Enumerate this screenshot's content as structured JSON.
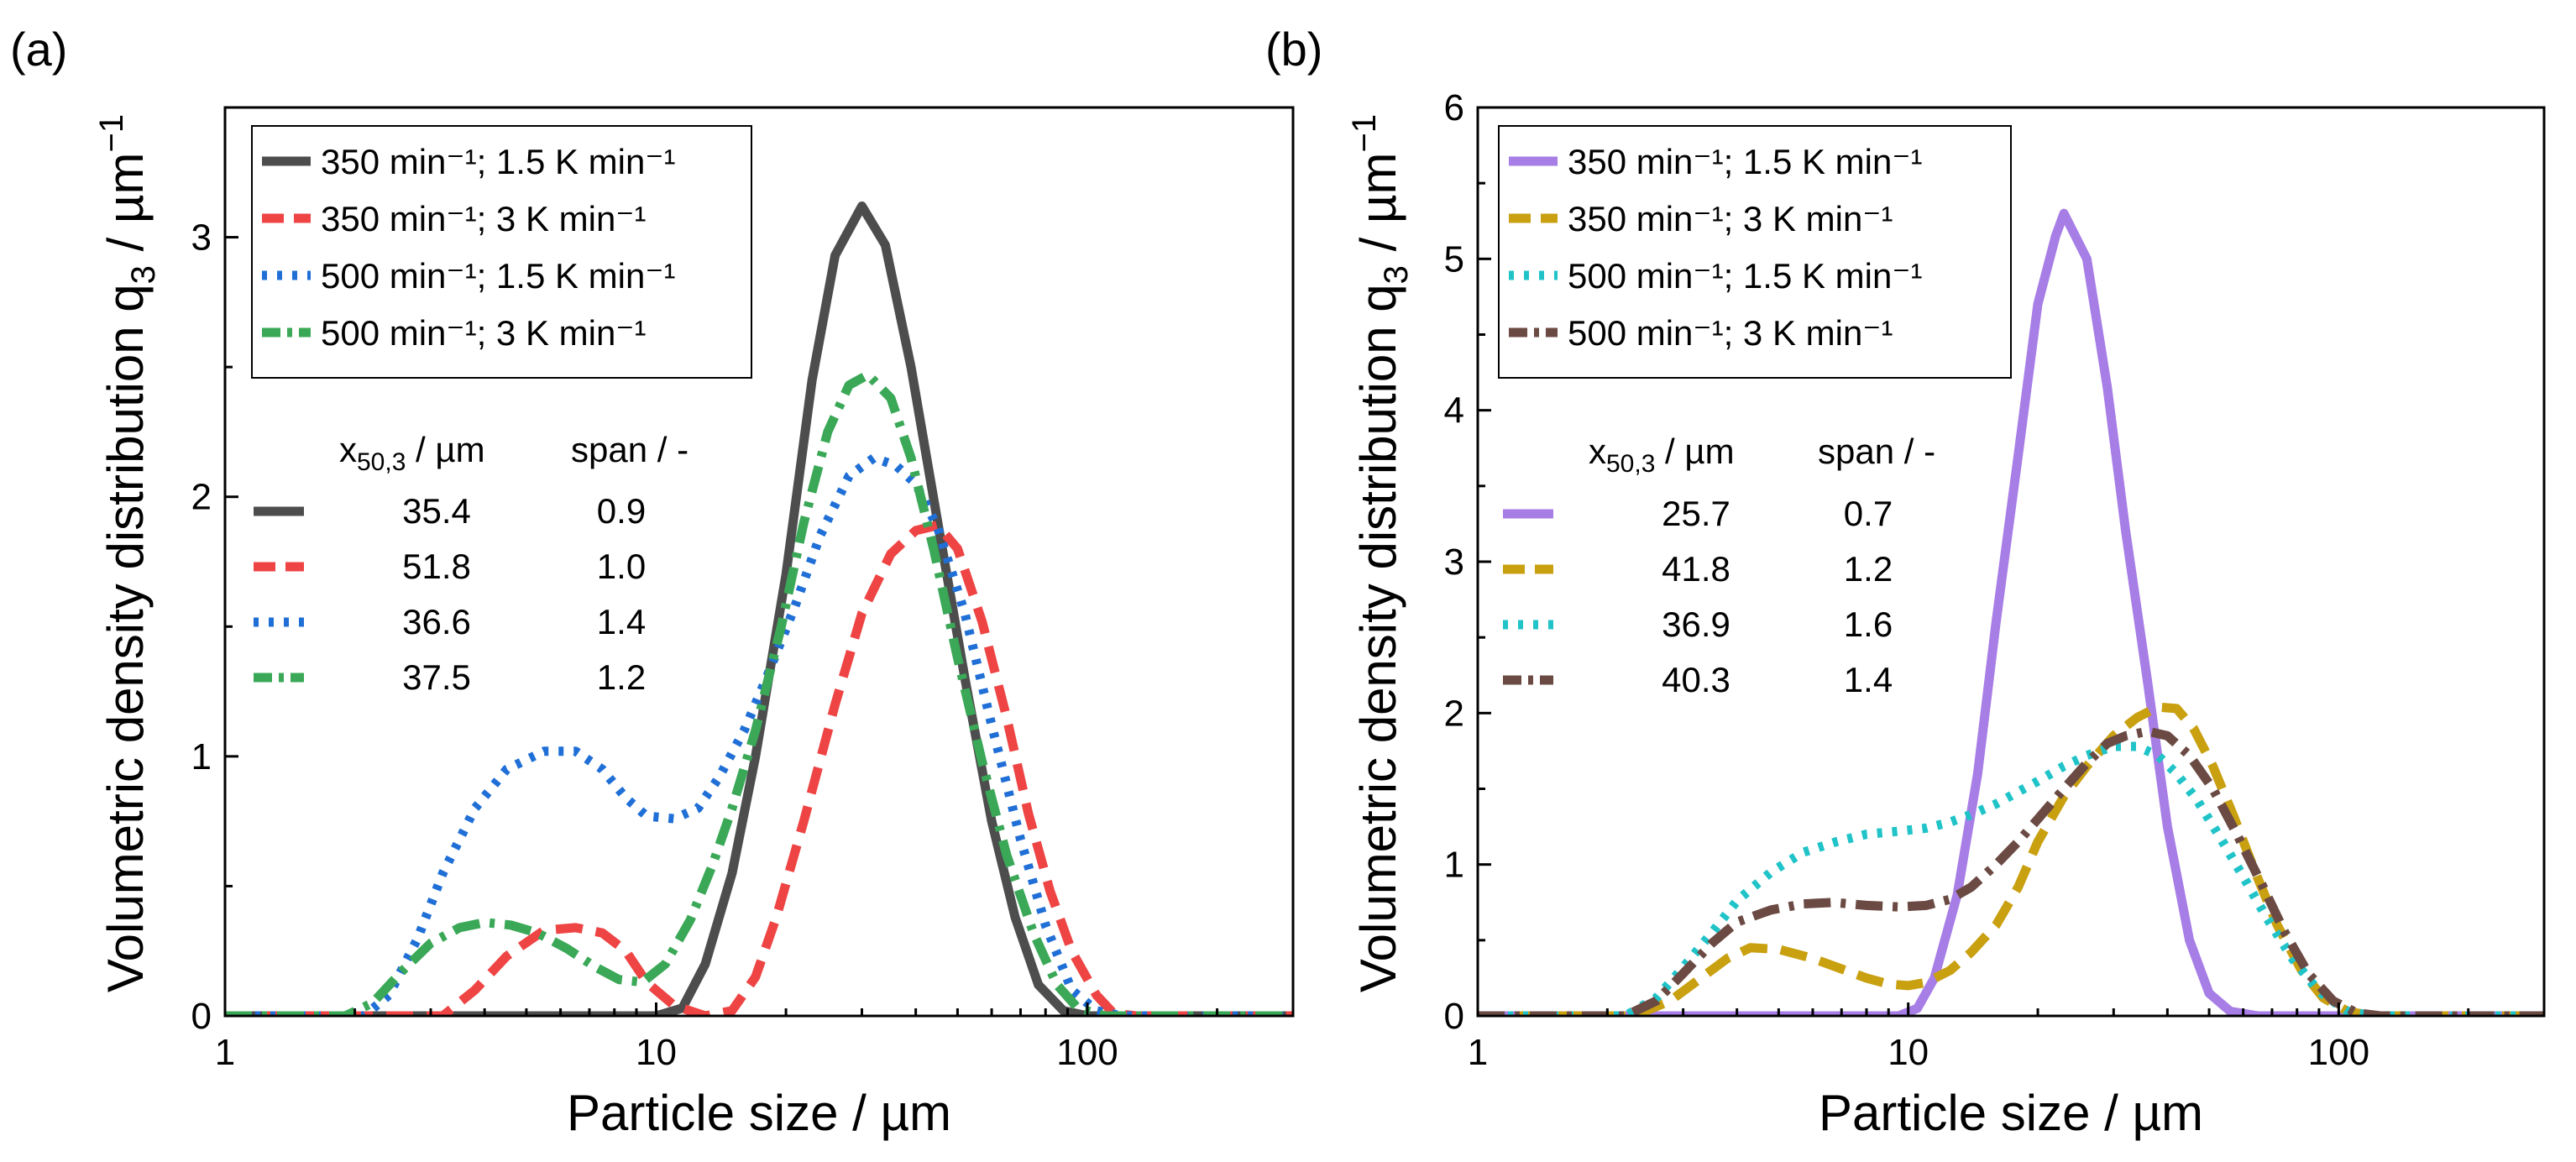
{
  "chart_data": [
    {
      "type": "line",
      "panel_label": "(a)",
      "xlabel": "Particle size / µm",
      "ylabel_main": "Volumetric density distribution q",
      "ylabel_sub": "3",
      "ylabel_unit": " / µm",
      "ylabel_sup": "−1",
      "xscale": "log",
      "xlim": [
        1,
        300
      ],
      "ylim": [
        0,
        3.5
      ],
      "xticks": [
        {
          "value": 1,
          "label": "1"
        },
        {
          "value": 10,
          "label": "10"
        },
        {
          "value": 100,
          "label": "100"
        }
      ],
      "yticks": [
        {
          "value": 0,
          "label": "0"
        },
        {
          "value": 1,
          "label": "1"
        },
        {
          "value": 2,
          "label": "2"
        },
        {
          "value": 3,
          "label": "3"
        }
      ],
      "legend_position": "top-left",
      "series": [
        {
          "name": "350 min⁻¹; 1.5 K min⁻¹",
          "color": "#4d4d4d",
          "style": "solid",
          "x50": "35.4",
          "span": "0.9",
          "points": [
            [
              1,
              0
            ],
            [
              10,
              0
            ],
            [
              11.5,
              0.03
            ],
            [
              13,
              0.2
            ],
            [
              15,
              0.55
            ],
            [
              17,
              1.0
            ],
            [
              20,
              1.7
            ],
            [
              23,
              2.45
            ],
            [
              26,
              2.93
            ],
            [
              30,
              3.12
            ],
            [
              34,
              2.97
            ],
            [
              39,
              2.5
            ],
            [
              45,
              1.9
            ],
            [
              52,
              1.3
            ],
            [
              60,
              0.75
            ],
            [
              68,
              0.38
            ],
            [
              77,
              0.12
            ],
            [
              88,
              0.02
            ],
            [
              100,
              0
            ],
            [
              300,
              0
            ]
          ]
        },
        {
          "name": "350 min⁻¹; 3 K min⁻¹",
          "color": "#ee4444",
          "style": "dash",
          "x50": "51.8",
          "span": "1.0",
          "points": [
            [
              1,
              0
            ],
            [
              3.2,
              0
            ],
            [
              3.8,
              0.1
            ],
            [
              4.5,
              0.23
            ],
            [
              5.5,
              0.33
            ],
            [
              6.5,
              0.34
            ],
            [
              7.5,
              0.32
            ],
            [
              8.5,
              0.25
            ],
            [
              9.5,
              0.13
            ],
            [
              11,
              0.04
            ],
            [
              13,
              0.0
            ],
            [
              15,
              0.02
            ],
            [
              17,
              0.15
            ],
            [
              19,
              0.38
            ],
            [
              22,
              0.75
            ],
            [
              26,
              1.2
            ],
            [
              30,
              1.55
            ],
            [
              35,
              1.78
            ],
            [
              40,
              1.87
            ],
            [
              45,
              1.89
            ],
            [
              50,
              1.8
            ],
            [
              57,
              1.52
            ],
            [
              65,
              1.15
            ],
            [
              73,
              0.78
            ],
            [
              82,
              0.48
            ],
            [
              92,
              0.25
            ],
            [
              105,
              0.08
            ],
            [
              115,
              0.01
            ],
            [
              130,
              0
            ],
            [
              300,
              0
            ]
          ]
        },
        {
          "name": "500 min⁻¹; 1.5 K min⁻¹",
          "color": "#1f6fd6",
          "style": "dot",
          "x50": "36.6",
          "span": "1.4",
          "points": [
            [
              1,
              0
            ],
            [
              2.1,
              0
            ],
            [
              2.4,
              0.08
            ],
            [
              2.8,
              0.3
            ],
            [
              3.2,
              0.55
            ],
            [
              3.8,
              0.8
            ],
            [
              4.5,
              0.95
            ],
            [
              5.5,
              1.02
            ],
            [
              6.5,
              1.02
            ],
            [
              7.5,
              0.95
            ],
            [
              8.5,
              0.84
            ],
            [
              9.5,
              0.77
            ],
            [
              11,
              0.76
            ],
            [
              12.5,
              0.8
            ],
            [
              14,
              0.92
            ],
            [
              16,
              1.1
            ],
            [
              18,
              1.3
            ],
            [
              21,
              1.58
            ],
            [
              24,
              1.85
            ],
            [
              28,
              2.08
            ],
            [
              32,
              2.15
            ],
            [
              36,
              2.12
            ],
            [
              40,
              2.05
            ],
            [
              45,
              1.88
            ],
            [
              52,
              1.55
            ],
            [
              60,
              1.12
            ],
            [
              70,
              0.68
            ],
            [
              80,
              0.35
            ],
            [
              92,
              0.1
            ],
            [
              105,
              0.02
            ],
            [
              120,
              0
            ],
            [
              300,
              0
            ]
          ]
        },
        {
          "name": "500 min⁻¹; 3 K min⁻¹",
          "color": "#3aa857",
          "style": "dashdot",
          "x50": "37.5",
          "span": "1.2",
          "points": [
            [
              1,
              0
            ],
            [
              1.9,
              0
            ],
            [
              2.2,
              0.05
            ],
            [
              2.6,
              0.18
            ],
            [
              3,
              0.28
            ],
            [
              3.5,
              0.34
            ],
            [
              4,
              0.36
            ],
            [
              4.6,
              0.35
            ],
            [
              5.3,
              0.32
            ],
            [
              6.2,
              0.26
            ],
            [
              7.2,
              0.19
            ],
            [
              8.2,
              0.14
            ],
            [
              9.3,
              0.13
            ],
            [
              10.5,
              0.2
            ],
            [
              12,
              0.37
            ],
            [
              13.5,
              0.58
            ],
            [
              15,
              0.8
            ],
            [
              17,
              1.1
            ],
            [
              19.5,
              1.5
            ],
            [
              22,
              1.9
            ],
            [
              25,
              2.25
            ],
            [
              28,
              2.43
            ],
            [
              31,
              2.47
            ],
            [
              35,
              2.38
            ],
            [
              39,
              2.15
            ],
            [
              44,
              1.8
            ],
            [
              50,
              1.38
            ],
            [
              57,
              0.98
            ],
            [
              65,
              0.62
            ],
            [
              75,
              0.32
            ],
            [
              85,
              0.12
            ],
            [
              95,
              0.03
            ],
            [
              110,
              0
            ],
            [
              300,
              0
            ]
          ]
        }
      ],
      "stats_header": {
        "x50": "x",
        "x50_sub": "50,3",
        "x50_unit": " / µm",
        "span": "span / -"
      }
    },
    {
      "type": "line",
      "panel_label": "(b)",
      "xlabel": "Particle size / µm",
      "ylabel_main": "Volumetric density distribution q",
      "ylabel_sub": "3",
      "ylabel_unit": " / µm",
      "ylabel_sup": "−1",
      "xscale": "log",
      "xlim": [
        1,
        300
      ],
      "ylim": [
        0,
        6
      ],
      "xticks": [
        {
          "value": 1,
          "label": "1"
        },
        {
          "value": 10,
          "label": "10"
        },
        {
          "value": 100,
          "label": "100"
        }
      ],
      "yticks": [
        {
          "value": 0,
          "label": "0"
        },
        {
          "value": 1,
          "label": "1"
        },
        {
          "value": 2,
          "label": "2"
        },
        {
          "value": 3,
          "label": "3"
        },
        {
          "value": 4,
          "label": "4"
        },
        {
          "value": 5,
          "label": "5"
        },
        {
          "value": 6,
          "label": "6"
        }
      ],
      "legend_position": "top-left",
      "series": [
        {
          "name": "350 min⁻¹; 1.5 K min⁻¹",
          "color": "#a77de6",
          "style": "solid",
          "x50": "25.7",
          "span": "0.7",
          "points": [
            [
              1,
              0
            ],
            [
              9.5,
              0
            ],
            [
              10.5,
              0.05
            ],
            [
              11.5,
              0.25
            ],
            [
              13,
              0.8
            ],
            [
              14.5,
              1.6
            ],
            [
              16,
              2.6
            ],
            [
              18,
              3.7
            ],
            [
              20,
              4.7
            ],
            [
              22,
              5.15
            ],
            [
              23,
              5.3
            ],
            [
              26,
              5.0
            ],
            [
              29,
              4.15
            ],
            [
              32,
              3.2
            ],
            [
              36,
              2.2
            ],
            [
              40,
              1.25
            ],
            [
              45,
              0.5
            ],
            [
              50,
              0.15
            ],
            [
              56,
              0.03
            ],
            [
              65,
              0
            ],
            [
              300,
              0
            ]
          ]
        },
        {
          "name": "350 min⁻¹; 3 K min⁻¹",
          "color": "#c9a010",
          "style": "dash",
          "x50": "41.8",
          "span": "1.2",
          "points": [
            [
              1,
              0
            ],
            [
              2.3,
              0
            ],
            [
              2.8,
              0.1
            ],
            [
              3.3,
              0.25
            ],
            [
              3.8,
              0.38
            ],
            [
              4.3,
              0.45
            ],
            [
              5,
              0.44
            ],
            [
              6,
              0.38
            ],
            [
              7,
              0.31
            ],
            [
              8,
              0.25
            ],
            [
              9,
              0.21
            ],
            [
              10,
              0.2
            ],
            [
              11,
              0.22
            ],
            [
              12.5,
              0.3
            ],
            [
              14,
              0.42
            ],
            [
              16,
              0.6
            ],
            [
              18,
              0.85
            ],
            [
              20,
              1.15
            ],
            [
              23,
              1.45
            ],
            [
              26,
              1.65
            ],
            [
              30,
              1.85
            ],
            [
              34,
              1.97
            ],
            [
              38,
              2.04
            ],
            [
              42,
              2.03
            ],
            [
              46,
              1.9
            ],
            [
              51,
              1.65
            ],
            [
              57,
              1.32
            ],
            [
              64,
              0.95
            ],
            [
              72,
              0.6
            ],
            [
              82,
              0.3
            ],
            [
              92,
              0.12
            ],
            [
              105,
              0.03
            ],
            [
              120,
              0
            ],
            [
              300,
              0
            ]
          ]
        },
        {
          "name": "500 min⁻¹; 1.5 K min⁻¹",
          "color": "#1fc3c8",
          "style": "dot",
          "x50": "36.9",
          "span": "1.6",
          "points": [
            [
              1,
              0
            ],
            [
              2.2,
              0
            ],
            [
              2.6,
              0.12
            ],
            [
              3,
              0.32
            ],
            [
              3.5,
              0.55
            ],
            [
              4,
              0.76
            ],
            [
              4.8,
              0.95
            ],
            [
              5.7,
              1.08
            ],
            [
              6.8,
              1.15
            ],
            [
              8,
              1.2
            ],
            [
              9.5,
              1.22
            ],
            [
              11,
              1.24
            ],
            [
              12.5,
              1.28
            ],
            [
              14,
              1.33
            ],
            [
              16,
              1.4
            ],
            [
              18,
              1.48
            ],
            [
              20,
              1.55
            ],
            [
              23,
              1.65
            ],
            [
              26,
              1.72
            ],
            [
              30,
              1.78
            ],
            [
              34,
              1.78
            ],
            [
              38,
              1.72
            ],
            [
              42,
              1.6
            ],
            [
              47,
              1.42
            ],
            [
              53,
              1.18
            ],
            [
              60,
              0.92
            ],
            [
              68,
              0.65
            ],
            [
              78,
              0.38
            ],
            [
              90,
              0.16
            ],
            [
              105,
              0.03
            ],
            [
              120,
              0
            ],
            [
              300,
              0
            ]
          ]
        },
        {
          "name": "500 min⁻¹; 3 K min⁻¹",
          "color": "#6b4a43",
          "style": "dashdot",
          "x50": "40.3",
          "span": "1.4",
          "points": [
            [
              1,
              0
            ],
            [
              2.2,
              0
            ],
            [
              2.6,
              0.1
            ],
            [
              3,
              0.28
            ],
            [
              3.5,
              0.48
            ],
            [
              4,
              0.62
            ],
            [
              4.8,
              0.7
            ],
            [
              5.7,
              0.74
            ],
            [
              6.7,
              0.75
            ],
            [
              8,
              0.73
            ],
            [
              9.5,
              0.72
            ],
            [
              11,
              0.73
            ],
            [
              12.5,
              0.77
            ],
            [
              14,
              0.85
            ],
            [
              16,
              1.0
            ],
            [
              18,
              1.15
            ],
            [
              20,
              1.3
            ],
            [
              23,
              1.5
            ],
            [
              26,
              1.67
            ],
            [
              29,
              1.8
            ],
            [
              32,
              1.85
            ],
            [
              36,
              1.88
            ],
            [
              40,
              1.85
            ],
            [
              45,
              1.72
            ],
            [
              51,
              1.5
            ],
            [
              58,
              1.2
            ],
            [
              66,
              0.88
            ],
            [
              75,
              0.55
            ],
            [
              85,
              0.28
            ],
            [
              97,
              0.1
            ],
            [
              110,
              0.02
            ],
            [
              125,
              0
            ],
            [
              300,
              0
            ]
          ]
        }
      ],
      "stats_header": {
        "x50": "x",
        "x50_sub": "50,3",
        "x50_unit": " / µm",
        "span": "span / -"
      }
    }
  ]
}
